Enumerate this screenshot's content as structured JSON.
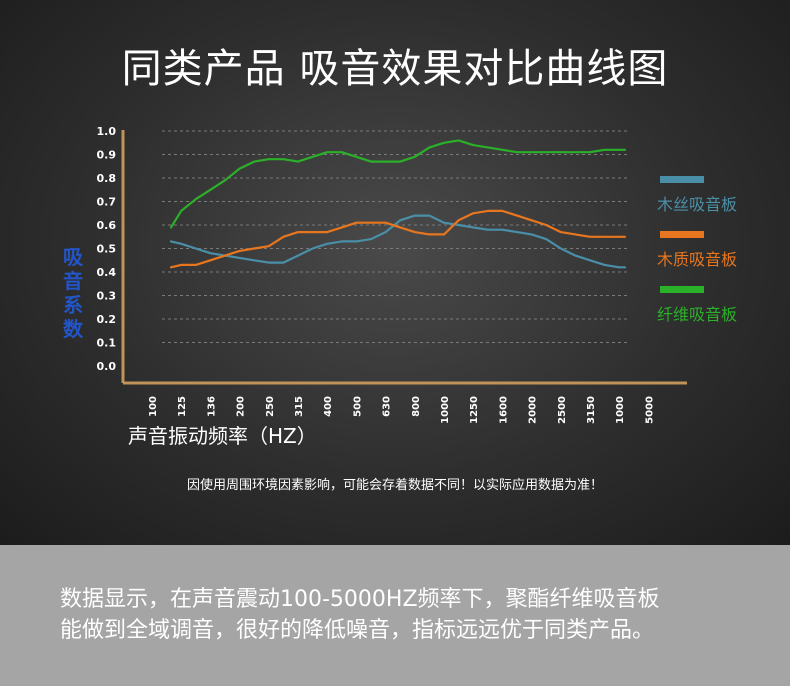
{
  "title": "同类产品 吸音效果对比曲线图",
  "note": "因使用周围环境因素影响，可能会存着数据不同！以实际应用数据为准！",
  "summary": [
    "数据显示，在声音震动100-5000HZ频率下，聚酯纤维吸音板",
    "能做到全域调音，很好的降低噪音，指标远远优于同类产品。"
  ],
  "colors": {
    "axis": "#c0935a",
    "grid": "#7a7a7a",
    "text": "#ffffff",
    "ylabel": "#2255c8"
  },
  "chart_data": {
    "type": "line",
    "title": "同类产品 吸音效果对比曲线图",
    "xlabel": "声音振动频率（HZ）",
    "ylabel": "吸音系数",
    "ylim": [
      0,
      1.0
    ],
    "grid": true,
    "legend": "right",
    "yticks": [
      "0.0",
      "0.1",
      "0.2",
      "0.3",
      "0.4",
      "0.5",
      "0.6",
      "0.7",
      "0.8",
      "0.9",
      "1.0"
    ],
    "categories": [
      "100",
      "125",
      "136",
      "200",
      "250",
      "315",
      "400",
      "500",
      "630",
      "800",
      "1000",
      "1250",
      "1600",
      "2000",
      "2500",
      "3150",
      "1000",
      "5000"
    ],
    "x": [
      0.65,
      1,
      1.5,
      2,
      2.5,
      3,
      3.5,
      4,
      4.5,
      5,
      5.5,
      6,
      6.5,
      7,
      7.5,
      8,
      8.5,
      9,
      9.5,
      10,
      10.5,
      11,
      11.5,
      12,
      12.5,
      13,
      13.5,
      14,
      14.5,
      15,
      15.5,
      16,
      16.2
    ],
    "series": [
      {
        "name": "木丝吸音板",
        "color": "#4a8fa8",
        "values": [
          0.53,
          0.52,
          0.5,
          0.48,
          0.47,
          0.46,
          0.45,
          0.44,
          0.44,
          0.47,
          0.5,
          0.52,
          0.53,
          0.53,
          0.54,
          0.57,
          0.62,
          0.64,
          0.64,
          0.61,
          0.6,
          0.59,
          0.58,
          0.58,
          0.57,
          0.56,
          0.54,
          0.5,
          0.47,
          0.45,
          0.43,
          0.42,
          0.42
        ]
      },
      {
        "name": "木质吸音板",
        "color": "#e8761e",
        "values": [
          0.42,
          0.43,
          0.43,
          0.45,
          0.47,
          0.49,
          0.5,
          0.51,
          0.55,
          0.57,
          0.57,
          0.57,
          0.59,
          0.61,
          0.61,
          0.61,
          0.59,
          0.57,
          0.56,
          0.56,
          0.62,
          0.65,
          0.66,
          0.66,
          0.64,
          0.62,
          0.6,
          0.57,
          0.56,
          0.55,
          0.55,
          0.55,
          0.55
        ]
      },
      {
        "name": "纤维吸音板",
        "color": "#2bb02a",
        "values": [
          0.59,
          0.66,
          0.71,
          0.75,
          0.79,
          0.84,
          0.87,
          0.88,
          0.88,
          0.87,
          0.89,
          0.91,
          0.91,
          0.89,
          0.87,
          0.87,
          0.87,
          0.89,
          0.93,
          0.95,
          0.96,
          0.94,
          0.93,
          0.92,
          0.91,
          0.91,
          0.91,
          0.91,
          0.91,
          0.91,
          0.92,
          0.92,
          0.92
        ]
      }
    ]
  }
}
